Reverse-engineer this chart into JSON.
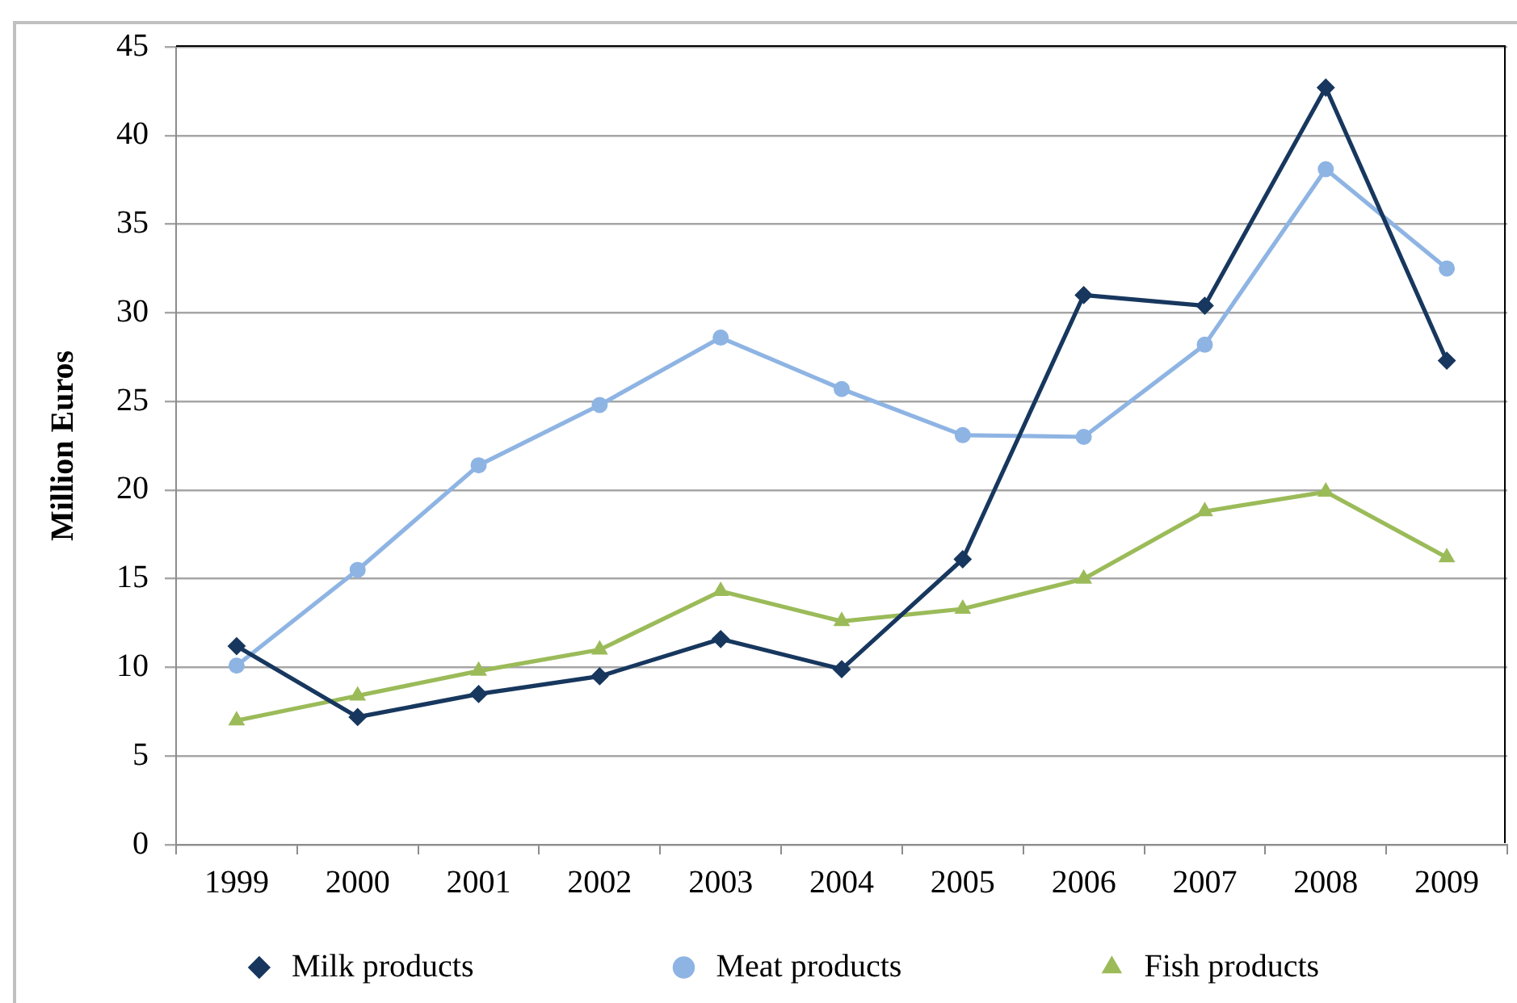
{
  "chart_data": {
    "type": "line",
    "ylabel": "Million Euros",
    "categories": [
      "1999",
      "2000",
      "2001",
      "2002",
      "2003",
      "2004",
      "2005",
      "2006",
      "2007",
      "2008",
      "2009"
    ],
    "series": [
      {
        "name": "Milk products",
        "color": "#17375e",
        "marker": "diamond",
        "values": [
          11.2,
          7.2,
          8.5,
          9.5,
          11.6,
          9.9,
          16.1,
          31.0,
          30.4,
          42.7,
          27.3
        ]
      },
      {
        "name": "Meat products",
        "color": "#8eb4e3",
        "marker": "circle",
        "values": [
          10.1,
          15.5,
          21.4,
          24.8,
          28.6,
          25.7,
          23.1,
          23.0,
          28.2,
          38.1,
          32.5
        ]
      },
      {
        "name": "Fish products",
        "color": "#9bbb59",
        "marker": "triangle",
        "values": [
          7.0,
          8.4,
          9.8,
          11.0,
          14.3,
          12.6,
          13.3,
          15.0,
          18.8,
          19.9,
          16.2
        ]
      }
    ],
    "ylim": [
      0,
      45
    ],
    "yticks": [
      0,
      5,
      10,
      15,
      20,
      25,
      30,
      35,
      40,
      45
    ],
    "grid": "y",
    "legend": "bottom",
    "line_style": "solid"
  }
}
